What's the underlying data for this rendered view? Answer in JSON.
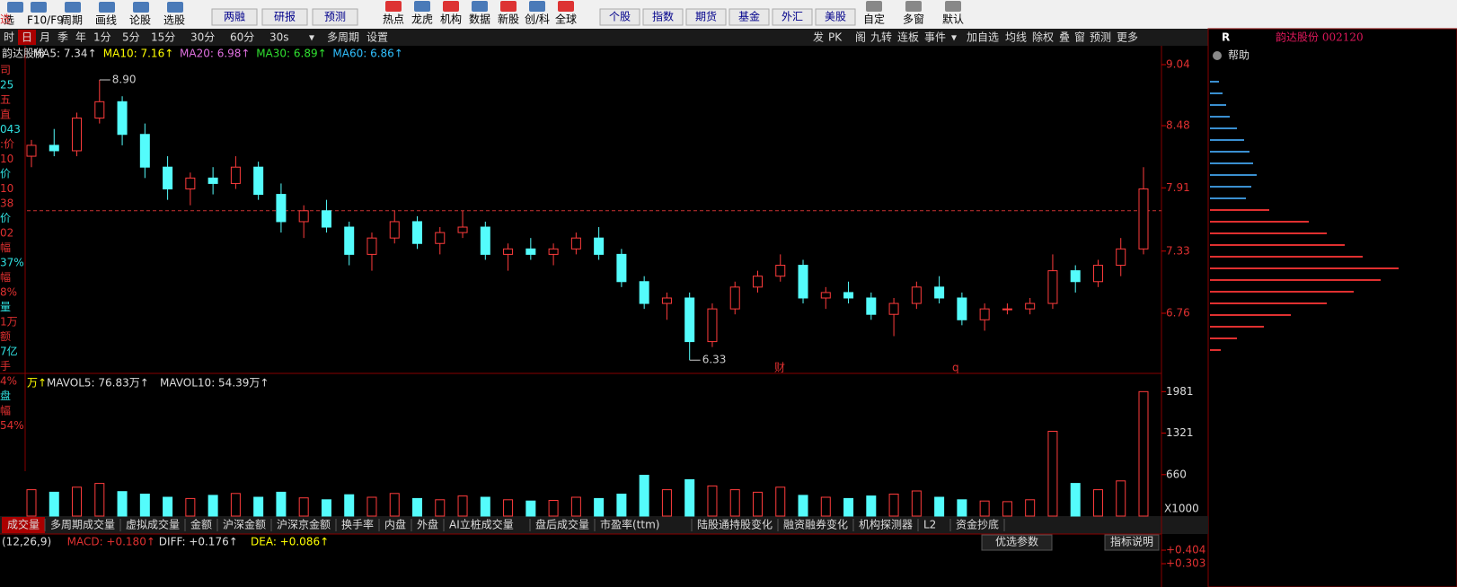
{
  "toolbar": {
    "left": [
      "选",
      "F10/F9",
      "周期",
      "画线",
      "论股",
      "选股"
    ],
    "buttons1": [
      "两融",
      "研报",
      "预测"
    ],
    "icons": [
      "热点",
      "龙虎",
      "机构",
      "数据",
      "新股",
      "创/科",
      "全球"
    ],
    "buttons2": [
      "个股",
      "指数",
      "期货",
      "基金",
      "外汇",
      "美股"
    ],
    "right": [
      "自定",
      "多窗",
      "默认"
    ]
  },
  "period_bar": {
    "left": [
      "时",
      "日",
      "月",
      "季",
      "年",
      "1分",
      "5分",
      "15分",
      "30分",
      "60分",
      "30s",
      "▾",
      "多周期",
      "设置"
    ],
    "right": [
      "发",
      "PK",
      "阁",
      "九转",
      "连板",
      "事件",
      "▾",
      "加自选",
      "均线",
      "除权",
      "叠",
      "窗",
      "预测",
      "更多"
    ]
  },
  "side": {
    "flag": "R",
    "stock": "韵达股份 002120",
    "help": "帮助"
  },
  "left_column": [
    "选",
    "司",
    "25",
    "五",
    "直",
    "043",
    ":价",
    "10",
    "价",
    "10",
    "38",
    "价",
    "02",
    "幅",
    "37%",
    "幅",
    "8%",
    "量",
    "1万",
    "额",
    "7亿",
    "手",
    "4%",
    "盘",
    "幅",
    "54%"
  ],
  "price_panel": {
    "legend": [
      "韵达股份",
      "MA5: 7.34↑",
      "MA10: 7.16↑",
      "MA20: 6.98↑",
      "MA30: 6.89↑",
      "MA60: 6.86↑"
    ],
    "ylim": [
      6.2,
      9.04
    ],
    "yticks": [
      9.04,
      8.48,
      7.91,
      7.33,
      6.76
    ],
    "ref_line": 7.7,
    "annotations": [
      {
        "text": "8.90",
        "value": 8.9,
        "index": 3
      },
      {
        "text": "6.33",
        "value": 6.33,
        "index": 29
      }
    ],
    "events": [
      "财",
      "q"
    ],
    "candles": [
      [
        8.2,
        8.35,
        8.1,
        8.3
      ],
      [
        8.3,
        8.45,
        8.2,
        8.25
      ],
      [
        8.25,
        8.6,
        8.2,
        8.55
      ],
      [
        8.55,
        8.9,
        8.5,
        8.7
      ],
      [
        8.7,
        8.75,
        8.3,
        8.4
      ],
      [
        8.4,
        8.5,
        8.0,
        8.1
      ],
      [
        8.1,
        8.2,
        7.8,
        7.9
      ],
      [
        7.9,
        8.05,
        7.75,
        8.0
      ],
      [
        8.0,
        8.1,
        7.85,
        7.95
      ],
      [
        7.95,
        8.2,
        7.9,
        8.1
      ],
      [
        8.1,
        8.15,
        7.8,
        7.85
      ],
      [
        7.85,
        7.95,
        7.5,
        7.6
      ],
      [
        7.6,
        7.75,
        7.45,
        7.7
      ],
      [
        7.7,
        7.8,
        7.5,
        7.55
      ],
      [
        7.55,
        7.6,
        7.2,
        7.3
      ],
      [
        7.3,
        7.5,
        7.15,
        7.45
      ],
      [
        7.45,
        7.7,
        7.4,
        7.6
      ],
      [
        7.6,
        7.65,
        7.35,
        7.4
      ],
      [
        7.4,
        7.55,
        7.3,
        7.5
      ],
      [
        7.5,
        7.7,
        7.45,
        7.55
      ],
      [
        7.55,
        7.6,
        7.25,
        7.3
      ],
      [
        7.3,
        7.4,
        7.15,
        7.35
      ],
      [
        7.35,
        7.45,
        7.25,
        7.3
      ],
      [
        7.3,
        7.4,
        7.2,
        7.35
      ],
      [
        7.35,
        7.5,
        7.3,
        7.45
      ],
      [
        7.45,
        7.55,
        7.25,
        7.3
      ],
      [
        7.3,
        7.35,
        7.0,
        7.05
      ],
      [
        7.05,
        7.1,
        6.8,
        6.85
      ],
      [
        6.85,
        6.95,
        6.7,
        6.9
      ],
      [
        6.9,
        6.95,
        6.33,
        6.5
      ],
      [
        6.5,
        6.85,
        6.45,
        6.8
      ],
      [
        6.8,
        7.05,
        6.75,
        7.0
      ],
      [
        7.0,
        7.15,
        6.95,
        7.1
      ],
      [
        7.1,
        7.3,
        7.05,
        7.2
      ],
      [
        7.2,
        7.25,
        6.85,
        6.9
      ],
      [
        6.9,
        7.0,
        6.8,
        6.95
      ],
      [
        6.95,
        7.05,
        6.85,
        6.9
      ],
      [
        6.9,
        6.95,
        6.7,
        6.75
      ],
      [
        6.75,
        6.9,
        6.55,
        6.85
      ],
      [
        6.85,
        7.05,
        6.8,
        7.0
      ],
      [
        7.0,
        7.1,
        6.85,
        6.9
      ],
      [
        6.9,
        6.95,
        6.65,
        6.7
      ],
      [
        6.7,
        6.85,
        6.6,
        6.8
      ],
      [
        6.8,
        6.85,
        6.75,
        6.8
      ],
      [
        6.8,
        6.9,
        6.75,
        6.85
      ],
      [
        6.85,
        7.3,
        6.8,
        7.15
      ],
      [
        7.15,
        7.2,
        6.95,
        7.05
      ],
      [
        7.05,
        7.25,
        7.0,
        7.2
      ],
      [
        7.2,
        7.45,
        7.1,
        7.35
      ],
      [
        7.35,
        8.1,
        7.3,
        7.9
      ]
    ]
  },
  "volume_panel": {
    "legend": [
      "万↑",
      "MAVOL5: 76.83万↑",
      "MAVOL10: 54.39万↑"
    ],
    "ylim": [
      0,
      2100
    ],
    "yticks": [
      1981,
      1321,
      660
    ],
    "unit": "X1000",
    "values": [
      420,
      380,
      460,
      520,
      390,
      350,
      300,
      280,
      330,
      360,
      300,
      380,
      290,
      260,
      340,
      300,
      360,
      280,
      260,
      320,
      300,
      260,
      240,
      250,
      300,
      280,
      350,
      650,
      420,
      580,
      480,
      420,
      380,
      460,
      330,
      300,
      280,
      320,
      350,
      400,
      300,
      260,
      240,
      230,
      260,
      1350,
      520,
      420,
      560,
      1981
    ]
  },
  "profile": [
    10,
    14,
    18,
    22,
    30,
    38,
    44,
    48,
    52,
    46,
    40,
    66,
    110,
    130,
    150,
    170,
    210,
    190,
    160,
    130,
    90,
    60,
    30,
    12
  ],
  "tabs": [
    "成交量",
    "多周期成交量",
    "虚拟成交量",
    "金额",
    "沪深金额",
    "沪深京金额",
    "换手率",
    "内盘",
    "外盘",
    "AI立桩成交量",
    "盘后成交量",
    "市盈率(ttm)",
    "陆股通持股变化",
    "融资融券变化",
    "机构探测器",
    "L2",
    "资金抄底"
  ],
  "macd_panel": {
    "legend": [
      "(12,26,9)",
      "MACD: +0.180↑",
      "DIFF: +0.176↑",
      "DEA: +0.086↑"
    ],
    "buttons": [
      "优选参数",
      "指标说明"
    ],
    "ylim": [
      0.3,
      0.404
    ],
    "yticks": [
      {
        "value": 0.404,
        "label": "+0.404"
      },
      {
        "value": 0.303,
        "label": "+0.303"
      }
    ]
  }
}
